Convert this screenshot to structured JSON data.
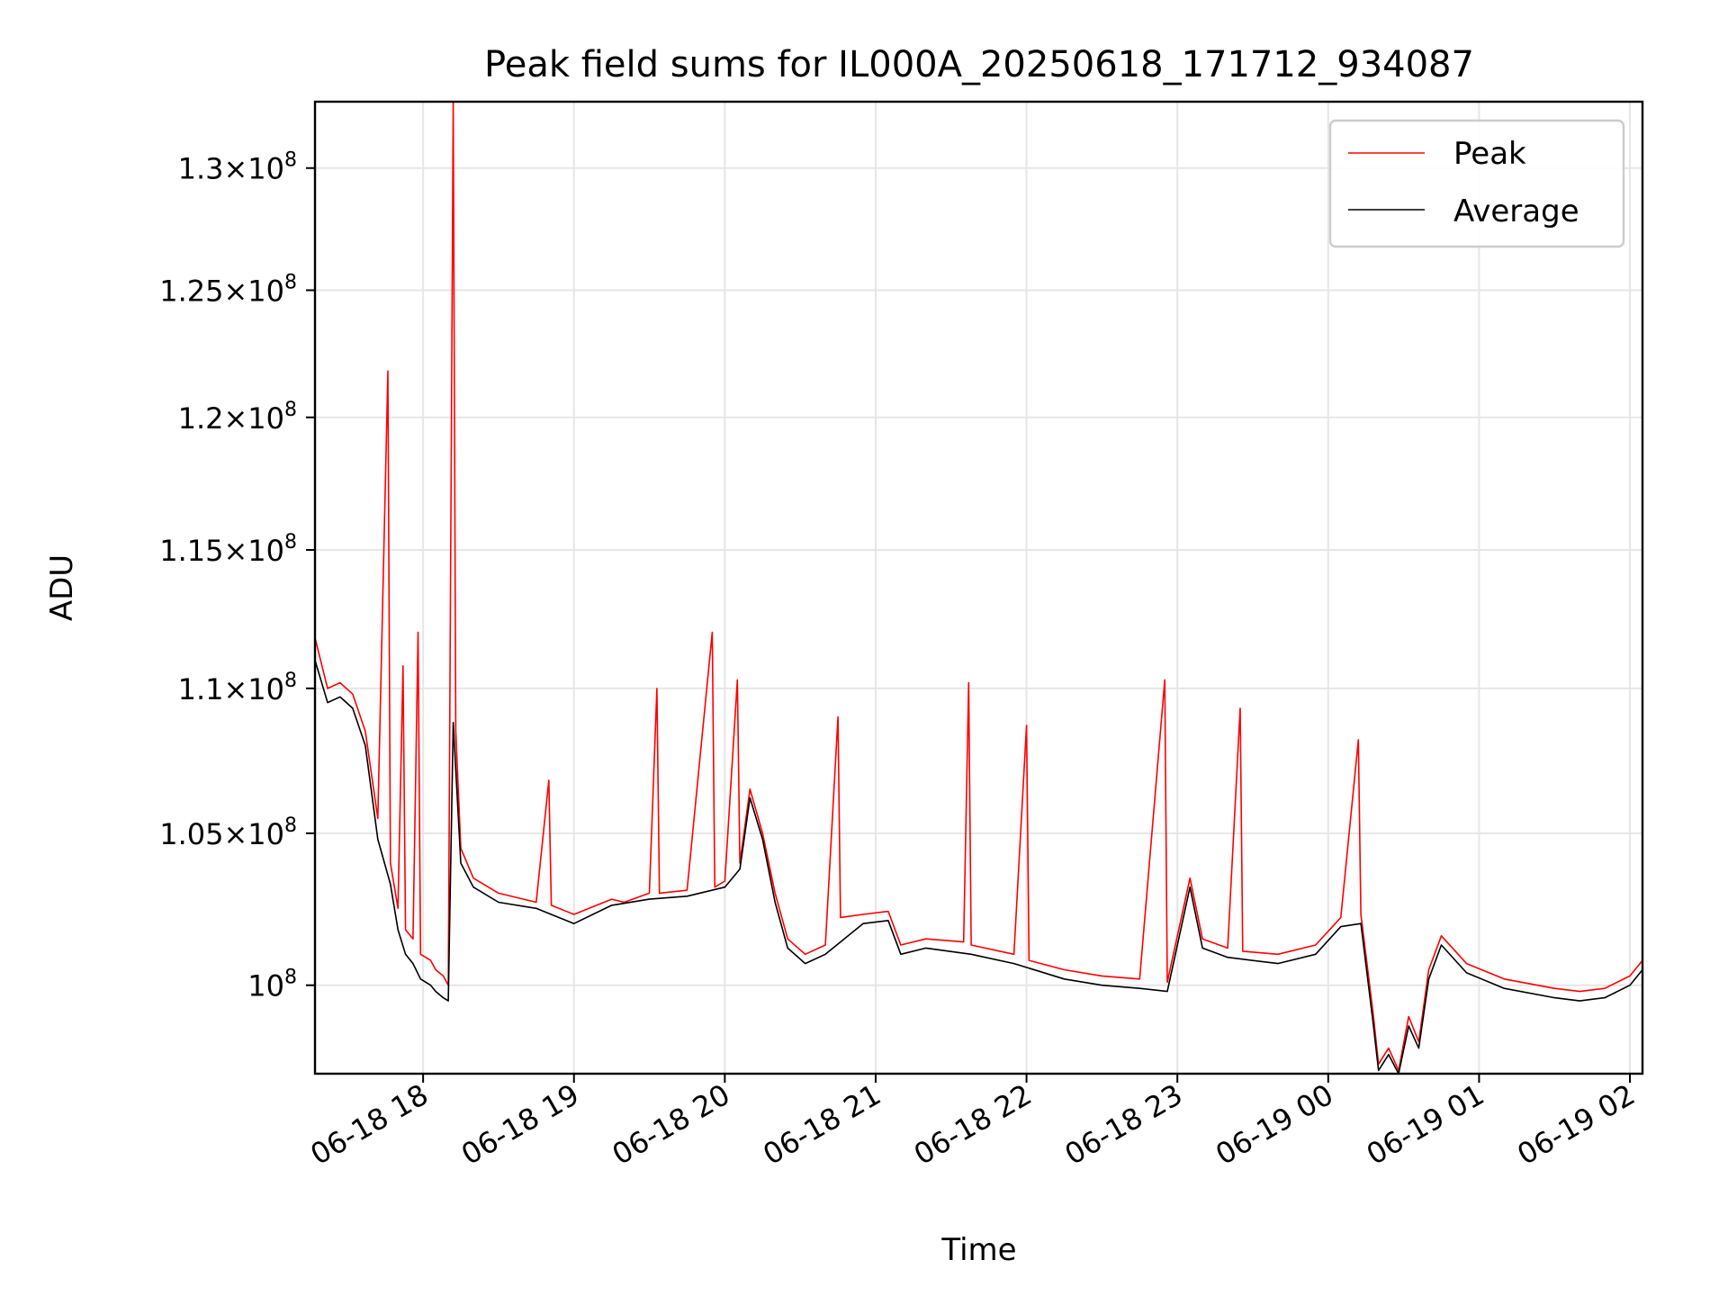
{
  "chart_data": {
    "type": "line",
    "title": "Peak field sums for IL000A_20250618_171712_934087",
    "xlabel": "Time",
    "ylabel": "ADU",
    "grid": true,
    "legend_placement": "top-right",
    "x_range": [
      "2025-06-18 17:17",
      "2025-06-19 02:05"
    ],
    "y_range": [
      97200000,
      132800000
    ],
    "y_scale": "log",
    "x_ticks": [
      {
        "value": "2025-06-18 18:00",
        "label": "06-18 18"
      },
      {
        "value": "2025-06-18 19:00",
        "label": "06-18 19"
      },
      {
        "value": "2025-06-18 20:00",
        "label": "06-18 20"
      },
      {
        "value": "2025-06-18 21:00",
        "label": "06-18 21"
      },
      {
        "value": "2025-06-18 22:00",
        "label": "06-18 22"
      },
      {
        "value": "2025-06-18 23:00",
        "label": "06-18 23"
      },
      {
        "value": "2025-06-19 00:00",
        "label": "06-19 00"
      },
      {
        "value": "2025-06-19 01:00",
        "label": "06-19 01"
      },
      {
        "value": "2025-06-19 02:00",
        "label": "06-19 02"
      }
    ],
    "y_ticks": [
      {
        "value": 100000000,
        "mant": "",
        "exp": "8",
        "label": "10^8"
      },
      {
        "value": 105000000,
        "mant": "1.05",
        "exp": "8",
        "label": "1.05×10^8"
      },
      {
        "value": 110000000,
        "mant": "1.1",
        "exp": "8",
        "label": "1.1×10^8"
      },
      {
        "value": 115000000,
        "mant": "1.15",
        "exp": "8",
        "label": "1.15×10^8"
      },
      {
        "value": 120000000,
        "mant": "1.2",
        "exp": "8",
        "label": "1.2×10^8"
      },
      {
        "value": 125000000,
        "mant": "1.25",
        "exp": "8",
        "label": "1.25×10^8"
      },
      {
        "value": 130000000,
        "mant": "1.3",
        "exp": "8",
        "label": "1.3×10^8"
      }
    ],
    "series": [
      {
        "name": "Peak",
        "color": "#ff0000",
        "points": [
          [
            "2025-06-18 17:17",
            111800000
          ],
          [
            "2025-06-18 17:22",
            110000000
          ],
          [
            "2025-06-18 17:27",
            110200000
          ],
          [
            "2025-06-18 17:32",
            109800000
          ],
          [
            "2025-06-18 17:37",
            108500000
          ],
          [
            "2025-06-18 17:42",
            105500000
          ],
          [
            "2025-06-18 17:46",
            121800000
          ],
          [
            "2025-06-18 17:47",
            104000000
          ],
          [
            "2025-06-18 17:50",
            102500000
          ],
          [
            "2025-06-18 17:52",
            110800000
          ],
          [
            "2025-06-18 17:53",
            101800000
          ],
          [
            "2025-06-18 17:56",
            101500000
          ],
          [
            "2025-06-18 17:58",
            112000000
          ],
          [
            "2025-06-18 17:59",
            101000000
          ],
          [
            "2025-06-18 18:03",
            100800000
          ],
          [
            "2025-06-18 18:05",
            100500000
          ],
          [
            "2025-06-18 18:08",
            100300000
          ],
          [
            "2025-06-18 18:10",
            100000000
          ],
          [
            "2025-06-18 18:12",
            132800000
          ],
          [
            "2025-06-18 18:13",
            108500000
          ],
          [
            "2025-06-18 18:15",
            104500000
          ],
          [
            "2025-06-18 18:20",
            103500000
          ],
          [
            "2025-06-18 18:30",
            103000000
          ],
          [
            "2025-06-18 18:45",
            102700000
          ],
          [
            "2025-06-18 18:50",
            106800000
          ],
          [
            "2025-06-18 18:51",
            102600000
          ],
          [
            "2025-06-18 19:00",
            102300000
          ],
          [
            "2025-06-18 19:15",
            102800000
          ],
          [
            "2025-06-18 19:20",
            102700000
          ],
          [
            "2025-06-18 19:30",
            103000000
          ],
          [
            "2025-06-18 19:33",
            110000000
          ],
          [
            "2025-06-18 19:34",
            103000000
          ],
          [
            "2025-06-18 19:45",
            103100000
          ],
          [
            "2025-06-18 19:55",
            112000000
          ],
          [
            "2025-06-18 19:56",
            103200000
          ],
          [
            "2025-06-18 20:00",
            103400000
          ],
          [
            "2025-06-18 20:05",
            110300000
          ],
          [
            "2025-06-18 20:06",
            104000000
          ],
          [
            "2025-06-18 20:10",
            106500000
          ],
          [
            "2025-06-18 20:15",
            105000000
          ],
          [
            "2025-06-18 20:20",
            103000000
          ],
          [
            "2025-06-18 20:25",
            101500000
          ],
          [
            "2025-06-18 20:32",
            101000000
          ],
          [
            "2025-06-18 20:40",
            101300000
          ],
          [
            "2025-06-18 20:45",
            109000000
          ],
          [
            "2025-06-18 20:46",
            102200000
          ],
          [
            "2025-06-18 20:55",
            102300000
          ],
          [
            "2025-06-18 21:05",
            102400000
          ],
          [
            "2025-06-18 21:10",
            101300000
          ],
          [
            "2025-06-18 21:20",
            101500000
          ],
          [
            "2025-06-18 21:35",
            101400000
          ],
          [
            "2025-06-18 21:37",
            110200000
          ],
          [
            "2025-06-18 21:38",
            101300000
          ],
          [
            "2025-06-18 21:55",
            101000000
          ],
          [
            "2025-06-18 22:00",
            108700000
          ],
          [
            "2025-06-18 22:01",
            100800000
          ],
          [
            "2025-06-18 22:15",
            100500000
          ],
          [
            "2025-06-18 22:30",
            100300000
          ],
          [
            "2025-06-18 22:45",
            100200000
          ],
          [
            "2025-06-18 22:55",
            110300000
          ],
          [
            "2025-06-18 22:56",
            100100000
          ],
          [
            "2025-06-18 23:05",
            103500000
          ],
          [
            "2025-06-18 23:10",
            101500000
          ],
          [
            "2025-06-18 23:20",
            101200000
          ],
          [
            "2025-06-18 23:25",
            109300000
          ],
          [
            "2025-06-18 23:26",
            101100000
          ],
          [
            "2025-06-18 23:40",
            101000000
          ],
          [
            "2025-06-18 23:55",
            101300000
          ],
          [
            "2025-06-19 00:05",
            102200000
          ],
          [
            "2025-06-19 00:12",
            108200000
          ],
          [
            "2025-06-19 00:13",
            102300000
          ],
          [
            "2025-06-19 00:18",
            99000000
          ],
          [
            "2025-06-19 00:20",
            97500000
          ],
          [
            "2025-06-19 00:24",
            98000000
          ],
          [
            "2025-06-19 00:28",
            97300000
          ],
          [
            "2025-06-19 00:32",
            99000000
          ],
          [
            "2025-06-19 00:36",
            98200000
          ],
          [
            "2025-06-19 00:40",
            100500000
          ],
          [
            "2025-06-19 00:45",
            101600000
          ],
          [
            "2025-06-19 00:55",
            100700000
          ],
          [
            "2025-06-19 01:10",
            100200000
          ],
          [
            "2025-06-19 01:30",
            99900000
          ],
          [
            "2025-06-19 01:40",
            99800000
          ],
          [
            "2025-06-19 01:50",
            99900000
          ],
          [
            "2025-06-19 02:00",
            100300000
          ],
          [
            "2025-06-19 02:05",
            100800000
          ]
        ]
      },
      {
        "name": "Average",
        "color": "#000000",
        "points": [
          [
            "2025-06-18 17:17",
            111000000
          ],
          [
            "2025-06-18 17:22",
            109500000
          ],
          [
            "2025-06-18 17:27",
            109700000
          ],
          [
            "2025-06-18 17:32",
            109300000
          ],
          [
            "2025-06-18 17:37",
            108000000
          ],
          [
            "2025-06-18 17:42",
            104800000
          ],
          [
            "2025-06-18 17:47",
            103300000
          ],
          [
            "2025-06-18 17:50",
            101800000
          ],
          [
            "2025-06-18 17:53",
            101000000
          ],
          [
            "2025-06-18 17:56",
            100700000
          ],
          [
            "2025-06-18 17:59",
            100200000
          ],
          [
            "2025-06-18 18:03",
            100000000
          ],
          [
            "2025-06-18 18:05",
            99800000
          ],
          [
            "2025-06-18 18:08",
            99600000
          ],
          [
            "2025-06-18 18:10",
            99500000
          ],
          [
            "2025-06-18 18:12",
            108800000
          ],
          [
            "2025-06-18 18:15",
            104000000
          ],
          [
            "2025-06-18 18:20",
            103200000
          ],
          [
            "2025-06-18 18:30",
            102700000
          ],
          [
            "2025-06-18 18:45",
            102500000
          ],
          [
            "2025-06-18 19:00",
            102000000
          ],
          [
            "2025-06-18 19:15",
            102600000
          ],
          [
            "2025-06-18 19:30",
            102800000
          ],
          [
            "2025-06-18 19:45",
            102900000
          ],
          [
            "2025-06-18 20:00",
            103200000
          ],
          [
            "2025-06-18 20:06",
            103800000
          ],
          [
            "2025-06-18 20:10",
            106200000
          ],
          [
            "2025-06-18 20:15",
            104800000
          ],
          [
            "2025-06-18 20:20",
            102700000
          ],
          [
            "2025-06-18 20:25",
            101200000
          ],
          [
            "2025-06-18 20:32",
            100700000
          ],
          [
            "2025-06-18 20:40",
            101000000
          ],
          [
            "2025-06-18 20:55",
            102000000
          ],
          [
            "2025-06-18 21:05",
            102100000
          ],
          [
            "2025-06-18 21:10",
            101000000
          ],
          [
            "2025-06-18 21:20",
            101200000
          ],
          [
            "2025-06-18 21:38",
            101000000
          ],
          [
            "2025-06-18 21:55",
            100700000
          ],
          [
            "2025-06-18 22:15",
            100200000
          ],
          [
            "2025-06-18 22:30",
            100000000
          ],
          [
            "2025-06-18 22:45",
            99900000
          ],
          [
            "2025-06-18 22:56",
            99800000
          ],
          [
            "2025-06-18 23:05",
            103200000
          ],
          [
            "2025-06-18 23:10",
            101200000
          ],
          [
            "2025-06-18 23:20",
            100900000
          ],
          [
            "2025-06-18 23:40",
            100700000
          ],
          [
            "2025-06-18 23:55",
            101000000
          ],
          [
            "2025-06-19 00:05",
            101900000
          ],
          [
            "2025-06-19 00:13",
            102000000
          ],
          [
            "2025-06-19 00:18",
            98700000
          ],
          [
            "2025-06-19 00:20",
            97300000
          ],
          [
            "2025-06-19 00:24",
            97800000
          ],
          [
            "2025-06-19 00:28",
            97200000
          ],
          [
            "2025-06-19 00:32",
            98700000
          ],
          [
            "2025-06-19 00:36",
            98000000
          ],
          [
            "2025-06-19 00:40",
            100200000
          ],
          [
            "2025-06-19 00:45",
            101300000
          ],
          [
            "2025-06-19 00:55",
            100400000
          ],
          [
            "2025-06-19 01:10",
            99900000
          ],
          [
            "2025-06-19 01:30",
            99600000
          ],
          [
            "2025-06-19 01:40",
            99500000
          ],
          [
            "2025-06-19 01:50",
            99600000
          ],
          [
            "2025-06-19 02:00",
            100000000
          ],
          [
            "2025-06-19 02:05",
            100500000
          ]
        ]
      }
    ]
  }
}
